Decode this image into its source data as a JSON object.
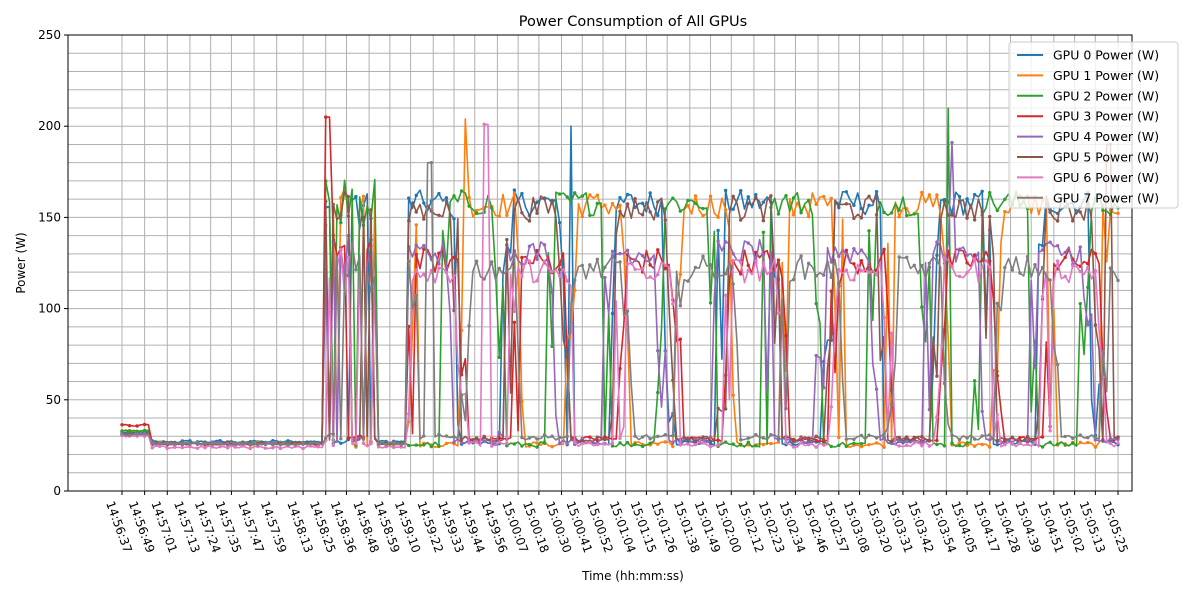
{
  "chart_data": {
    "type": "line",
    "title": "Power Consumption of All GPUs",
    "xlabel": "Time (hh:mm:ss)",
    "ylabel": "Power (W)",
    "ylim": [
      0,
      250
    ],
    "yticks": [
      "0",
      "50",
      "100",
      "150",
      "200",
      "250"
    ],
    "xlim": [
      "14:56:37",
      "15:05:25"
    ],
    "xticks": [
      "14:56:37",
      "14:56:49",
      "14:57:01",
      "14:57:13",
      "14:57:24",
      "14:57:35",
      "14:57:47",
      "14:57:59",
      "14:58:13",
      "14:58:25",
      "14:58:36",
      "14:58:48",
      "14:58:59",
      "14:59:10",
      "14:59:22",
      "14:59:33",
      "14:59:44",
      "14:59:56",
      "15:00:07",
      "15:00:18",
      "15:00:30",
      "15:00:41",
      "15:00:52",
      "15:01:04",
      "15:01:15",
      "15:01:26",
      "15:01:38",
      "15:01:49",
      "15:02:00",
      "15:02:12",
      "15:02:23",
      "15:02:34",
      "15:02:46",
      "15:02:57",
      "15:03:08",
      "15:03:20",
      "15:03:31",
      "15:03:42",
      "15:03:54",
      "15:04:05",
      "15:04:17",
      "15:04:28",
      "15:04:39",
      "15:04:51",
      "15:05:02",
      "15:05:13",
      "15:05:25"
    ],
    "grid": true,
    "legend_position": "top-right",
    "series": [
      {
        "name": "GPU 0 Power (W)",
        "color": "#1f77b4",
        "idle_pre": 32,
        "idle": 27,
        "low": 25,
        "high": 158,
        "peak": 200,
        "peak_time": "15:00:35"
      },
      {
        "name": "GPU 1 Power (W)",
        "color": "#ff7f0e",
        "idle_pre": 33,
        "idle": 26,
        "low": 24,
        "high": 157,
        "peak": 204,
        "peak_time": "14:59:39"
      },
      {
        "name": "GPU 2 Power (W)",
        "color": "#2ca02c",
        "idle_pre": 33,
        "idle": 26,
        "low": 24,
        "high": 158,
        "peak": 210,
        "peak_time": "15:03:55"
      },
      {
        "name": "GPU 3 Power (W)",
        "color": "#d62728",
        "idle_pre": 36,
        "idle": 26,
        "low": 27,
        "high": 126,
        "peak": 205,
        "peak_time": "14:58:26"
      },
      {
        "name": "GPU 4 Power (W)",
        "color": "#9467bd",
        "idle_pre": 31,
        "idle": 26,
        "low": 26,
        "high": 131,
        "peak": 191,
        "peak_time": "15:03:57"
      },
      {
        "name": "GPU 5 Power (W)",
        "color": "#8c564b",
        "idle_pre": 31,
        "idle": 26,
        "low": 27,
        "high": 155,
        "peak": 190,
        "peak_time": "15:05:20"
      },
      {
        "name": "GPU 6 Power (W)",
        "color": "#e377c2",
        "idle_pre": 30,
        "idle": 24,
        "low": 24,
        "high": 121,
        "peak": 201,
        "peak_time": "14:59:50"
      },
      {
        "name": "GPU 7 Power (W)",
        "color": "#7f7f7f",
        "idle_pre": 31,
        "idle": 26,
        "low": 28,
        "high": 122,
        "peak": 180,
        "peak_time": "14:59:20"
      }
    ]
  }
}
